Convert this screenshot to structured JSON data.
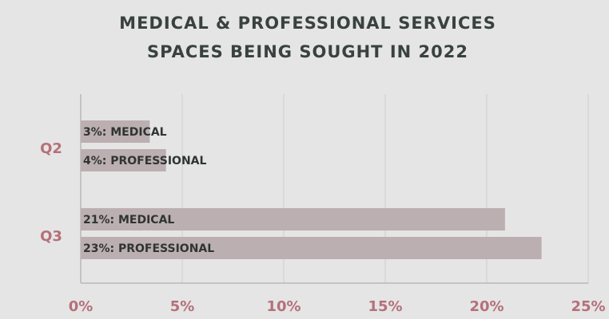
{
  "chart_data": {
    "type": "bar",
    "orientation": "horizontal",
    "title": [
      "MEDICAL & PROFESSIONAL SERVICES",
      "SPACES BEING SOUGHT IN 2022"
    ],
    "categories": [
      "Q2",
      "Q3"
    ],
    "series": [
      {
        "color": "#bcafb1",
        "values": [
          3.4,
          20.9
        ],
        "value_labels": [
          "3%: MEDICAL",
          "21%: MEDICAL"
        ]
      },
      {
        "color": "#bcafb1",
        "values": [
          4.2,
          22.7
        ],
        "value_labels": [
          "4%: PROFESSIONAL",
          "23%: PROFESSIONAL"
        ]
      }
    ],
    "xlim": [
      0,
      25
    ],
    "xticks": [
      {
        "value": 0,
        "label": "0%"
      },
      {
        "value": 5,
        "label": "5%"
      },
      {
        "value": 10,
        "label": "10%"
      },
      {
        "value": 15,
        "label": "15%"
      },
      {
        "value": 20,
        "label": "20%"
      },
      {
        "value": 25,
        "label": "25%"
      }
    ],
    "grid": true
  }
}
